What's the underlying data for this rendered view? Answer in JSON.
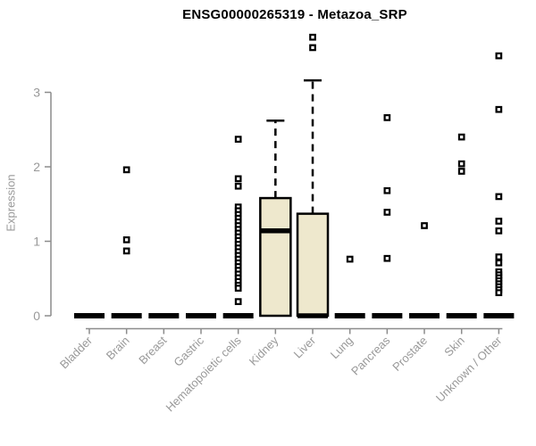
{
  "chart_data": {
    "type": "boxplot",
    "title": "ENSG00000265319 - Metazoa_SRP",
    "ylabel": "Expression",
    "xlabel": "",
    "yticks": [
      0,
      1,
      2,
      3
    ],
    "ylim": [
      0,
      3.9
    ],
    "grid": false,
    "legend": false,
    "categories": [
      "Bladder",
      "Brain",
      "Breast",
      "Gastric",
      "Hematopoietic cells",
      "Kidney",
      "Liver",
      "Lung",
      "Pancreas",
      "Prostate",
      "Skin",
      "Unknown / Other"
    ],
    "series": [
      {
        "category": "Bladder",
        "q1": 0,
        "median": 0,
        "q3": 0,
        "whisker_low": 0,
        "whisker_high": 0,
        "outliers": []
      },
      {
        "category": "Brain",
        "q1": 0,
        "median": 0,
        "q3": 0,
        "whisker_low": 0,
        "whisker_high": 0,
        "outliers": [
          1.96,
          1.02,
          0.87
        ]
      },
      {
        "category": "Breast",
        "q1": 0,
        "median": 0,
        "q3": 0,
        "whisker_low": 0,
        "whisker_high": 0,
        "outliers": []
      },
      {
        "category": "Gastric",
        "q1": 0,
        "median": 0,
        "q3": 0,
        "whisker_low": 0,
        "whisker_high": 0,
        "outliers": []
      },
      {
        "category": "Hematopoietic cells",
        "q1": 0,
        "median": 0,
        "q3": 0,
        "whisker_low": 0,
        "whisker_high": 0,
        "outliers": [
          2.37,
          1.84,
          1.74,
          1.46,
          1.41,
          1.36,
          1.31,
          1.26,
          1.21,
          1.16,
          1.11,
          1.06,
          1.01,
          0.96,
          0.91,
          0.86,
          0.81,
          0.76,
          0.71,
          0.66,
          0.61,
          0.56,
          0.51,
          0.46,
          0.41,
          0.37,
          0.19
        ]
      },
      {
        "category": "Kidney",
        "q1": 0,
        "median": 1.14,
        "q3": 1.58,
        "whisker_low": 0,
        "whisker_high": 2.62,
        "outliers": []
      },
      {
        "category": "Liver",
        "q1": 0,
        "median": 0,
        "q3": 1.37,
        "whisker_low": 0,
        "whisker_high": 3.16,
        "outliers": [
          3.74,
          3.6
        ]
      },
      {
        "category": "Lung",
        "q1": 0,
        "median": 0,
        "q3": 0,
        "whisker_low": 0,
        "whisker_high": 0,
        "outliers": [
          0.76
        ]
      },
      {
        "category": "Pancreas",
        "q1": 0,
        "median": 0,
        "q3": 0,
        "whisker_low": 0,
        "whisker_high": 0,
        "outliers": [
          2.66,
          1.68,
          1.39,
          0.77
        ]
      },
      {
        "category": "Prostate",
        "q1": 0,
        "median": 0,
        "q3": 0,
        "whisker_low": 0,
        "whisker_high": 0,
        "outliers": [
          1.21
        ]
      },
      {
        "category": "Skin",
        "q1": 0,
        "median": 0,
        "q3": 0,
        "whisker_low": 0,
        "whisker_high": 0,
        "outliers": [
          2.4,
          2.04,
          1.94
        ]
      },
      {
        "category": "Unknown / Other",
        "q1": 0,
        "median": 0,
        "q3": 0,
        "whisker_low": 0,
        "whisker_high": 0,
        "outliers": [
          3.49,
          2.77,
          1.6,
          1.27,
          1.14,
          0.79,
          0.71,
          0.59,
          0.55,
          0.51,
          0.47,
          0.43,
          0.39,
          0.35,
          0.31
        ]
      }
    ],
    "colors": {
      "box_fill": "#EEE8CD",
      "box_stroke": "#000000",
      "median": "#000000",
      "whisker": "#000000",
      "outlier_fill": "#FFFFFF",
      "outlier_stroke": "#000000",
      "axis": "#8C8C8C",
      "tick_label": "#999999",
      "title": "#000000",
      "background": "#FFFFFF"
    }
  }
}
